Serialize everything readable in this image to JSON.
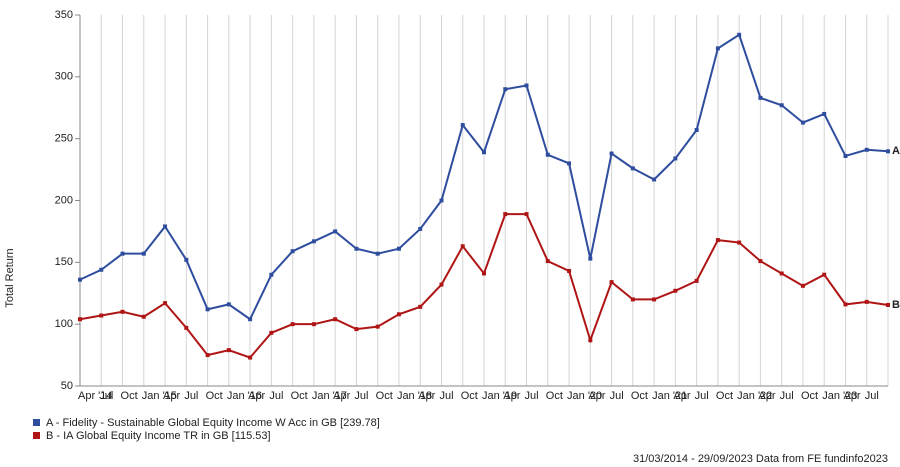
{
  "chart_data": {
    "type": "line",
    "y_label": "Total Return",
    "categories": [
      "Apr '14",
      "Jul",
      "Oct",
      "Jan '15",
      "Apr",
      "Jul",
      "Oct",
      "Jan '16",
      "Apr",
      "Jul",
      "Oct",
      "Jan '17",
      "Apr",
      "Jul",
      "Oct",
      "Jan '18",
      "Apr",
      "Jul",
      "Oct",
      "Jan '19",
      "Apr",
      "Jul",
      "Oct",
      "Jan '20",
      "Apr",
      "Jul",
      "Oct",
      "Jan '21",
      "Apr",
      "Jul",
      "Oct",
      "Jan '22",
      "Apr",
      "Jul",
      "Oct",
      "Jan '23",
      "Apr",
      "Jul",
      null
    ],
    "series": [
      {
        "name": "A - Fidelity - Sustainable Global Equity Income W Acc in GB [239.78]",
        "label": "A",
        "color": "#2e4d9e",
        "values": [
          136,
          144,
          157,
          157,
          179,
          152,
          112,
          116,
          104,
          140,
          159,
          167,
          175,
          161,
          157,
          161,
          177,
          200,
          261,
          239,
          290,
          293,
          237,
          230,
          153,
          238,
          226,
          217,
          234,
          257,
          323,
          334,
          283,
          277,
          263,
          270,
          236,
          241,
          239.78
        ]
      },
      {
        "name": "B - IA Global Equity Income TR in GB [115.53]",
        "label": "B",
        "color": "#b01515",
        "values": [
          104,
          107,
          110,
          106,
          117,
          97,
          75,
          79,
          73,
          93,
          100,
          100,
          104,
          96,
          98,
          108,
          114,
          132,
          163,
          141,
          189,
          189,
          151,
          143,
          87,
          134,
          120,
          120,
          127,
          135,
          168,
          166,
          151,
          141,
          131,
          140,
          116,
          118,
          115.53
        ]
      }
    ],
    "ylim": [
      50,
      350
    ],
    "yticks": [
      50,
      100,
      150,
      200,
      250,
      300,
      350
    ],
    "grid": "x",
    "footer": "31/03/2014 - 29/09/2023 Data from FE fundinfo2023"
  }
}
